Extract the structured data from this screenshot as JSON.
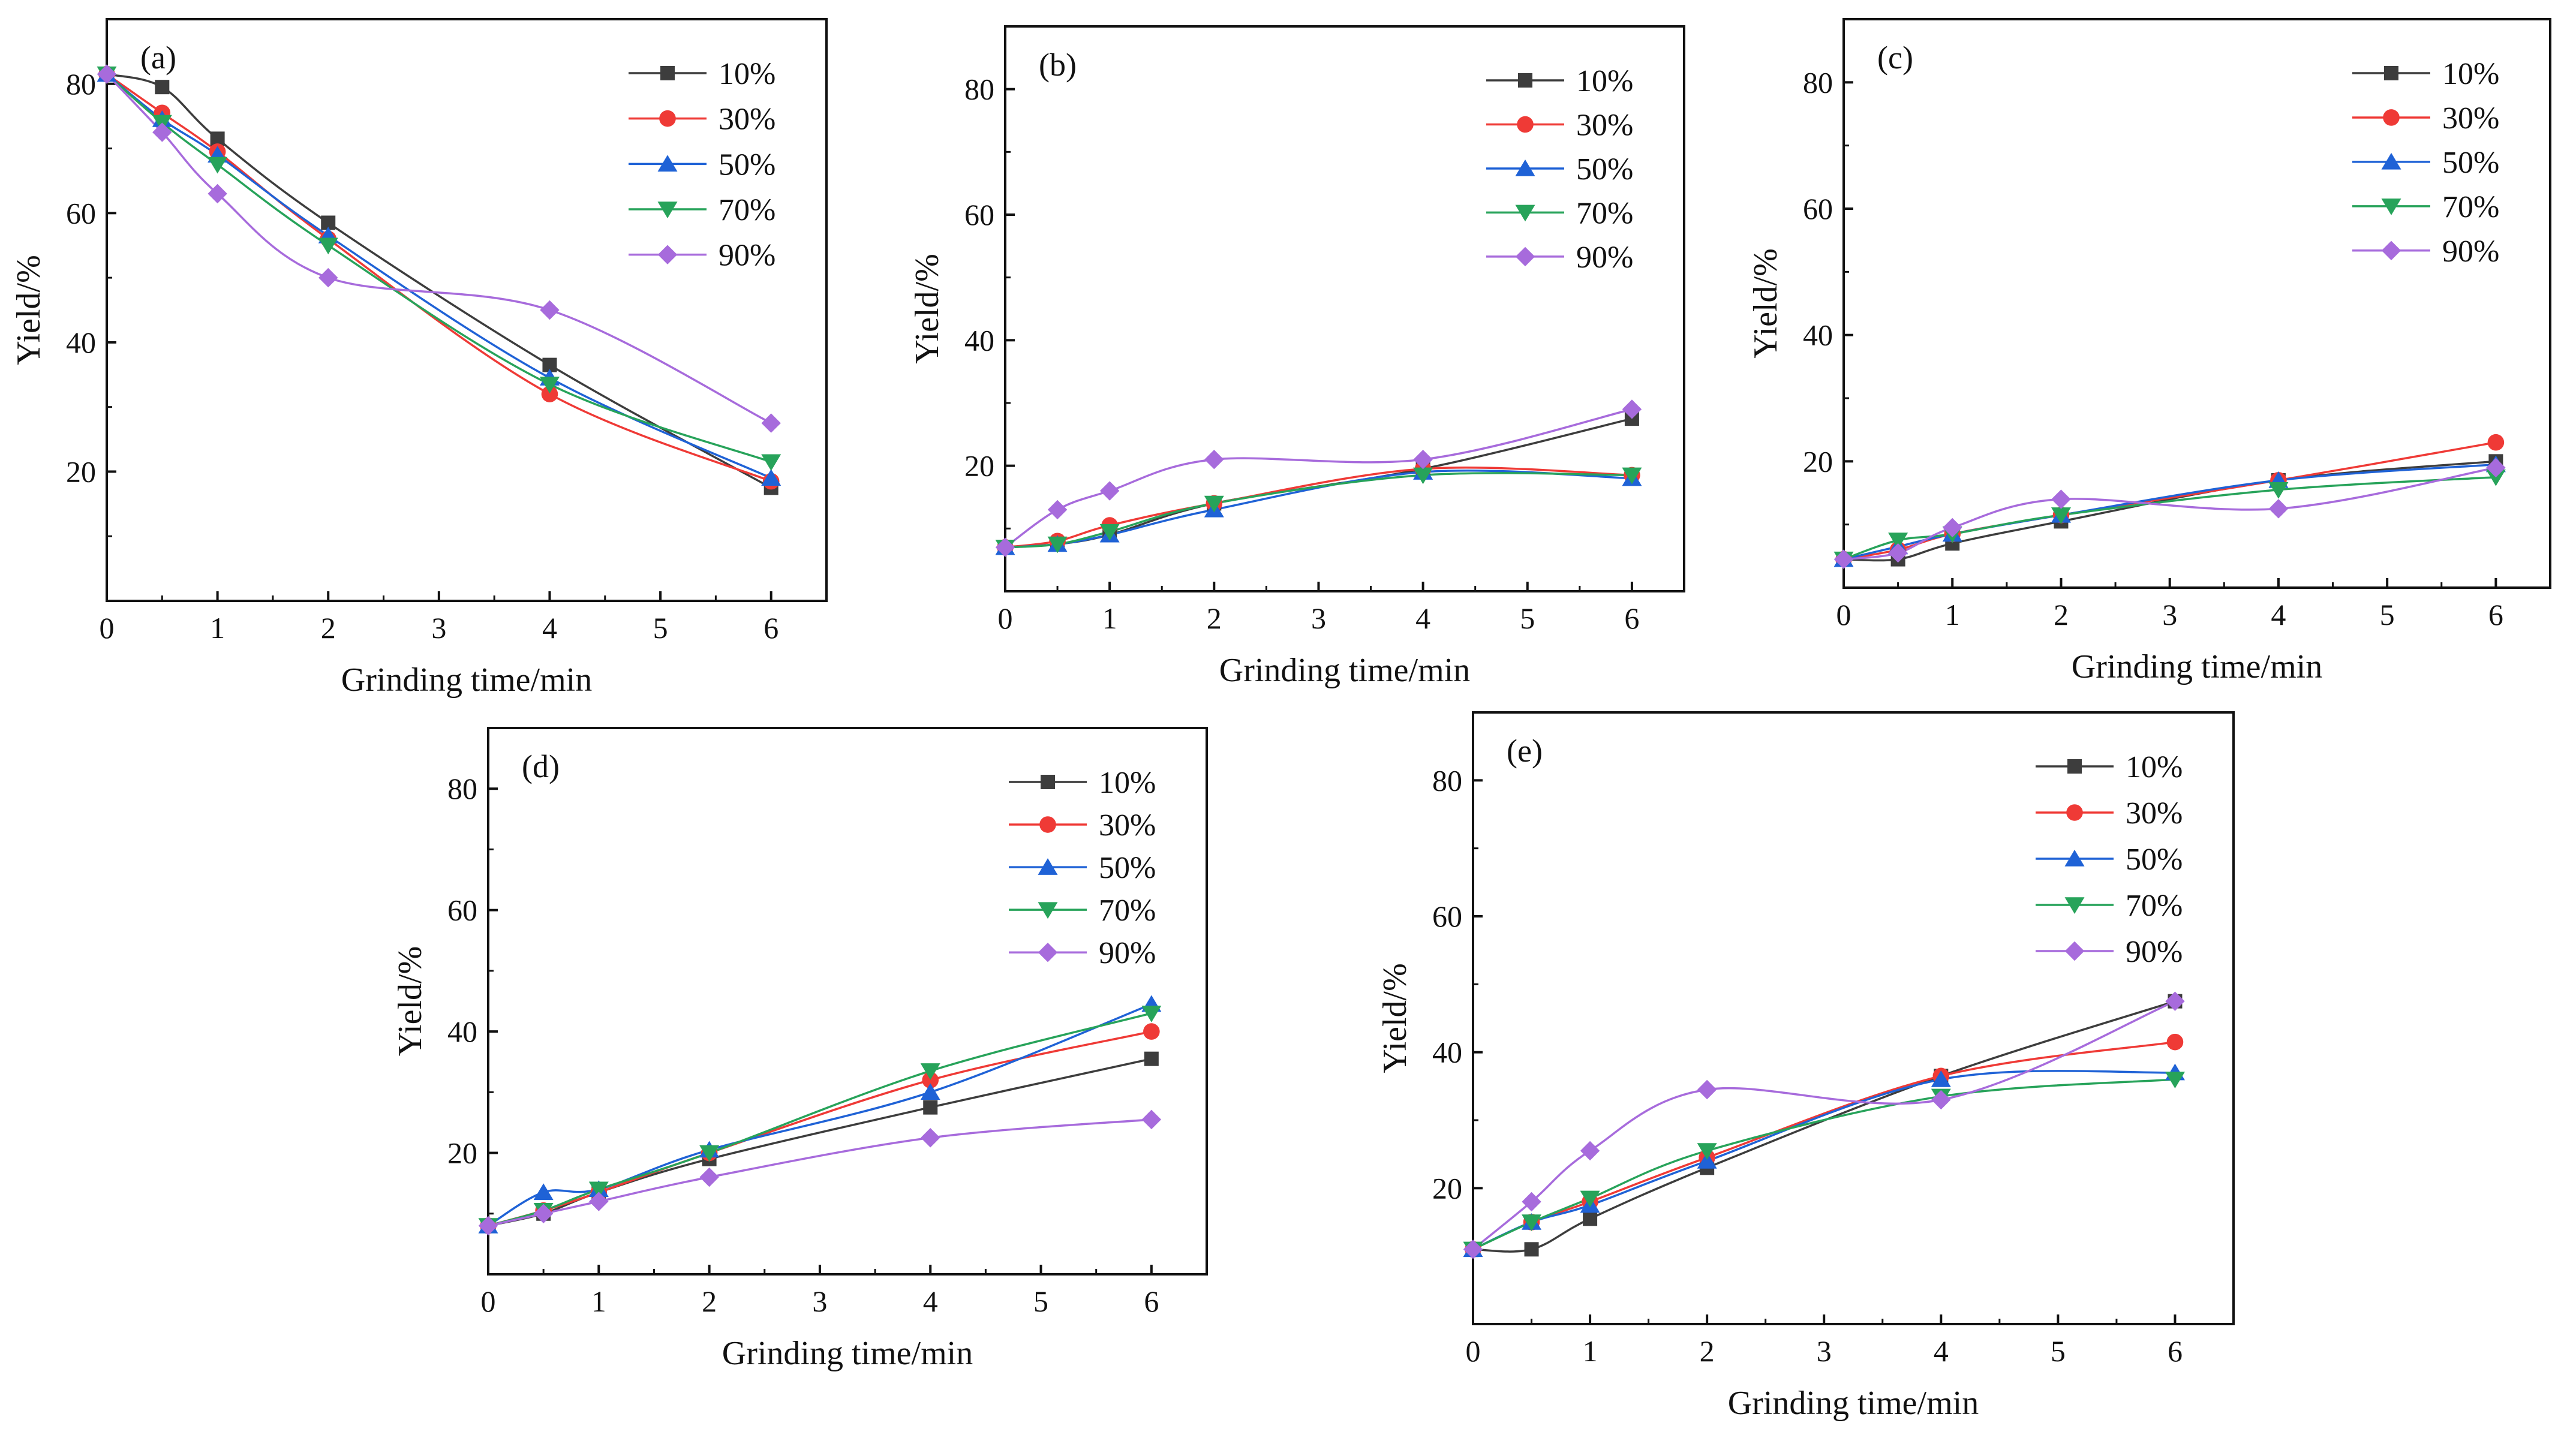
{
  "chart_data": [
    {
      "type": "line",
      "panel": "(a)",
      "xlabel": "Grinding time/min",
      "ylabel": "Yield/%",
      "xlim": [
        0,
        6.5
      ],
      "ylim": [
        0,
        90
      ],
      "xticks": [
        0,
        1,
        2,
        3,
        4,
        5,
        6
      ],
      "yticks": [
        20,
        40,
        60,
        80
      ],
      "x": [
        0,
        0.5,
        1,
        2,
        4,
        6
      ],
      "legend_position": "top-right",
      "series": [
        {
          "name": "10%",
          "marker": "square",
          "color": "#3d3d3d",
          "values": [
            81.5,
            79.5,
            71.5,
            58.5,
            36.5,
            17.5
          ]
        },
        {
          "name": "30%",
          "marker": "circle",
          "color": "#ef3a36",
          "values": [
            81.5,
            75.5,
            69.5,
            56,
            32,
            18.5
          ]
        },
        {
          "name": "50%",
          "marker": "triangle-up",
          "color": "#1f62d6",
          "values": [
            81.5,
            74.5,
            69,
            56.5,
            34.5,
            19
          ]
        },
        {
          "name": "70%",
          "marker": "triangle-down",
          "color": "#27a35a",
          "values": [
            81.5,
            74,
            67.5,
            55,
            33.5,
            21.5
          ]
        },
        {
          "name": "90%",
          "marker": "diamond",
          "color": "#a76bdc",
          "values": [
            81.5,
            72.5,
            63,
            50,
            45,
            27.5
          ]
        }
      ]
    },
    {
      "type": "line",
      "panel": "(b)",
      "xlabel": "Grinding time/min",
      "ylabel": "Yield/%",
      "xlim": [
        0,
        6.5
      ],
      "ylim": [
        0,
        90
      ],
      "xticks": [
        0,
        1,
        2,
        3,
        4,
        5,
        6
      ],
      "yticks": [
        20,
        40,
        60,
        80
      ],
      "x": [
        0,
        0.5,
        1,
        2,
        4,
        6
      ],
      "legend_position": "top-right",
      "series": [
        {
          "name": "10%",
          "marker": "square",
          "color": "#3d3d3d",
          "values": [
            7,
            7.5,
            9,
            14,
            19.5,
            27.5
          ]
        },
        {
          "name": "30%",
          "marker": "circle",
          "color": "#ef3a36",
          "values": [
            7,
            8,
            10.5,
            14,
            19.5,
            18.5
          ]
        },
        {
          "name": "50%",
          "marker": "triangle-up",
          "color": "#1f62d6",
          "values": [
            7,
            7.5,
            9,
            13,
            19,
            18
          ]
        },
        {
          "name": "70%",
          "marker": "triangle-down",
          "color": "#27a35a",
          "values": [
            7,
            7.5,
            9.5,
            14,
            18.5,
            18.5
          ]
        },
        {
          "name": "90%",
          "marker": "diamond",
          "color": "#a76bdc",
          "values": [
            7,
            13,
            16,
            21,
            21,
            29
          ]
        }
      ]
    },
    {
      "type": "line",
      "panel": "(c)",
      "xlabel": "Grinding time/min",
      "ylabel": "Yield/%",
      "xlim": [
        0,
        6.5
      ],
      "ylim": [
        0,
        90
      ],
      "xticks": [
        0,
        1,
        2,
        3,
        4,
        5,
        6
      ],
      "yticks": [
        20,
        40,
        60,
        80
      ],
      "x": [
        0,
        0.5,
        1,
        2,
        4,
        6
      ],
      "legend_position": "top-right",
      "series": [
        {
          "name": "10%",
          "marker": "square",
          "color": "#3d3d3d",
          "values": [
            4.5,
            4.5,
            7,
            10.5,
            17,
            20
          ]
        },
        {
          "name": "30%",
          "marker": "circle",
          "color": "#ef3a36",
          "values": [
            4.5,
            6,
            8.5,
            11.5,
            17,
            23
          ]
        },
        {
          "name": "50%",
          "marker": "triangle-up",
          "color": "#1f62d6",
          "values": [
            4.5,
            6.5,
            8.5,
            11.5,
            17,
            19.5
          ]
        },
        {
          "name": "70%",
          "marker": "triangle-down",
          "color": "#27a35a",
          "values": [
            4.5,
            7.5,
            8.5,
            11.5,
            15.5,
            17.5
          ]
        },
        {
          "name": "90%",
          "marker": "diamond",
          "color": "#a76bdc",
          "values": [
            4.5,
            5.5,
            9.5,
            14,
            12.5,
            19
          ]
        }
      ]
    },
    {
      "type": "line",
      "panel": "(d)",
      "xlabel": "Grinding time/min",
      "ylabel": "Yield/%",
      "xlim": [
        0,
        6.5
      ],
      "ylim": [
        0,
        90
      ],
      "xticks": [
        0,
        1,
        2,
        3,
        4,
        5,
        6
      ],
      "yticks": [
        20,
        40,
        60,
        80
      ],
      "x": [
        0,
        0.5,
        1,
        2,
        4,
        6
      ],
      "legend_position": "top-right",
      "series": [
        {
          "name": "10%",
          "marker": "square",
          "color": "#3d3d3d",
          "values": [
            8,
            10,
            13.5,
            19,
            27.5,
            35.5
          ]
        },
        {
          "name": "30%",
          "marker": "circle",
          "color": "#ef3a36",
          "values": [
            8,
            10.5,
            13.5,
            20,
            32,
            40
          ]
        },
        {
          "name": "50%",
          "marker": "triangle-up",
          "color": "#1f62d6",
          "values": [
            8,
            13.5,
            14,
            20.5,
            30,
            44.5
          ]
        },
        {
          "name": "70%",
          "marker": "triangle-down",
          "color": "#27a35a",
          "values": [
            8,
            10.5,
            14,
            20,
            33.5,
            43
          ]
        },
        {
          "name": "90%",
          "marker": "diamond",
          "color": "#a76bdc",
          "values": [
            8,
            10,
            12,
            16,
            22.5,
            25.5
          ]
        }
      ]
    },
    {
      "type": "line",
      "panel": "(e)",
      "xlabel": "Grinding time/min",
      "ylabel": "Yield/%",
      "xlim": [
        0,
        6.5
      ],
      "ylim": [
        0,
        90
      ],
      "xticks": [
        0,
        1,
        2,
        3,
        4,
        5,
        6
      ],
      "yticks": [
        20,
        40,
        60,
        80
      ],
      "x": [
        0,
        0.5,
        1,
        2,
        4,
        6
      ],
      "legend_position": "top-right",
      "series": [
        {
          "name": "10%",
          "marker": "square",
          "color": "#3d3d3d",
          "values": [
            11,
            11,
            15.5,
            23,
            36.5,
            47.5
          ]
        },
        {
          "name": "30%",
          "marker": "circle",
          "color": "#ef3a36",
          "values": [
            11,
            15,
            18,
            24.5,
            36.5,
            41.5
          ]
        },
        {
          "name": "50%",
          "marker": "triangle-up",
          "color": "#1f62d6",
          "values": [
            11,
            15,
            17.5,
            24,
            36,
            37
          ]
        },
        {
          "name": "70%",
          "marker": "triangle-down",
          "color": "#27a35a",
          "values": [
            11,
            15,
            18.5,
            25.5,
            33.5,
            36
          ]
        },
        {
          "name": "90%",
          "marker": "diamond",
          "color": "#a76bdc",
          "values": [
            11,
            18,
            25.5,
            34.5,
            33,
            47.5
          ]
        }
      ]
    }
  ]
}
